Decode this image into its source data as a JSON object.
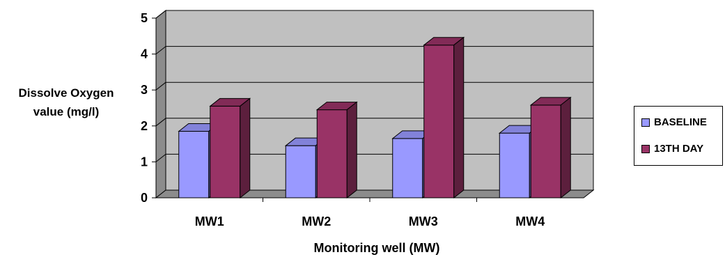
{
  "chart_data": {
    "type": "bar",
    "title": "",
    "xlabel": "Monitoring well (MW)",
    "ylabel": [
      "Dissolve Oxygen",
      "value (mg/l)"
    ],
    "categories": [
      "MW1",
      "MW2",
      "MW3",
      "MW4"
    ],
    "ylim": [
      0,
      5
    ],
    "yticks": [
      "0",
      "1",
      "2",
      "3",
      "4",
      "5"
    ],
    "grid": true,
    "legend_position": "right",
    "series": [
      {
        "name": "BASELINE",
        "values": [
          1.85,
          1.45,
          1.65,
          1.8
        ],
        "color": "#9999ff"
      },
      {
        "name": "13TH DAY",
        "values": [
          2.55,
          2.45,
          4.25,
          2.58
        ],
        "color": "#993366"
      }
    ]
  }
}
